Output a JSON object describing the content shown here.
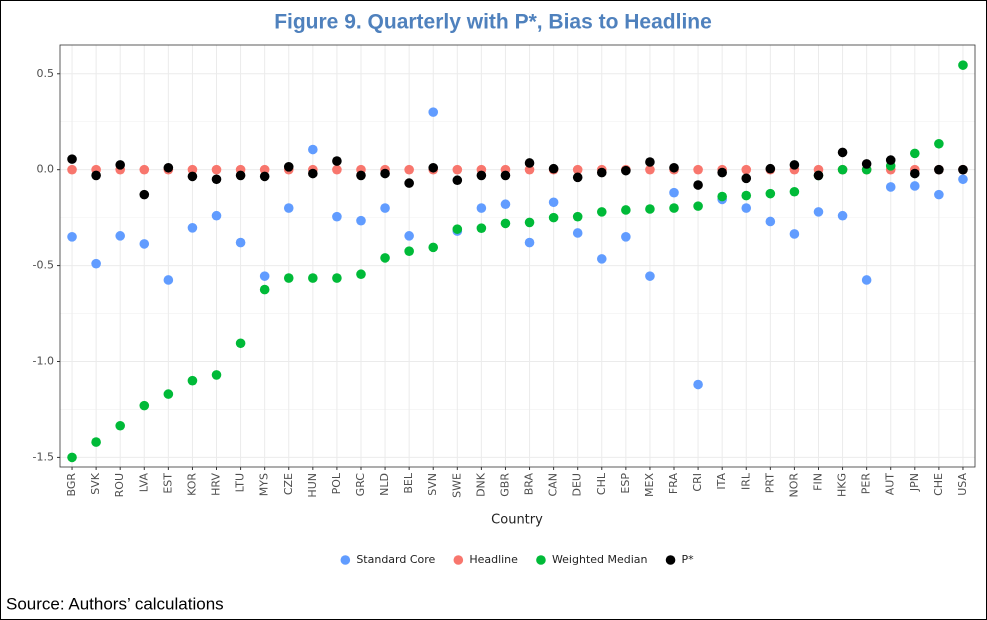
{
  "chart_data": {
    "type": "scatter",
    "title": "Figure 9. Quarterly with P*, Bias to Headline",
    "x_label": "Country",
    "categories": [
      "BGR",
      "SVK",
      "ROU",
      "LVA",
      "EST",
      "KOR",
      "HRV",
      "LTU",
      "MYS",
      "CZE",
      "HUN",
      "POL",
      "GRC",
      "NLD",
      "BEL",
      "SVN",
      "SWE",
      "DNK",
      "GBR",
      "BRA",
      "CAN",
      "DEU",
      "CHL",
      "ESP",
      "MEX",
      "FRA",
      "CRI",
      "ITA",
      "IRL",
      "PRT",
      "NOR",
      "FIN",
      "HKG",
      "PER",
      "AUT",
      "JPN",
      "CHE",
      "USA"
    ],
    "series": [
      {
        "name": "Standard Core",
        "color": "#619cff",
        "values": [
          -0.35,
          -0.49,
          -0.345,
          -0.387,
          -0.575,
          -0.303,
          -0.24,
          -0.38,
          -0.555,
          -0.2,
          0.105,
          -0.245,
          -0.266,
          -0.2,
          -0.345,
          0.3,
          -0.32,
          -0.2,
          -0.18,
          -0.38,
          -0.17,
          -0.33,
          -0.465,
          -0.35,
          -0.555,
          -0.12,
          -1.12,
          -0.155,
          -0.2,
          -0.27,
          -0.335,
          -0.22,
          -0.24,
          -0.575,
          -0.09,
          -0.085,
          -0.13,
          -0.05
        ]
      },
      {
        "name": "Headline",
        "color": "#f8766d",
        "values": [
          0,
          0,
          0,
          0,
          0,
          0,
          0,
          0,
          0,
          0,
          0,
          0,
          0,
          0,
          0,
          0,
          0,
          0,
          0,
          0,
          0,
          0,
          0,
          0,
          0,
          0,
          0,
          0,
          0,
          0,
          0,
          0,
          0,
          0,
          0,
          0,
          0,
          0
        ]
      },
      {
        "name": "Weighted Median",
        "color": "#00ba38",
        "values": [
          -1.5,
          -1.42,
          -1.335,
          -1.23,
          -1.17,
          -1.1,
          -1.07,
          -0.905,
          -0.625,
          -0.565,
          -0.565,
          -0.565,
          -0.545,
          -0.46,
          -0.425,
          -0.405,
          -0.31,
          -0.305,
          -0.28,
          -0.275,
          -0.25,
          -0.245,
          -0.22,
          -0.21,
          -0.205,
          -0.2,
          -0.19,
          -0.14,
          -0.135,
          -0.125,
          -0.115,
          -0.03,
          0,
          0,
          0.02,
          0.085,
          0.135,
          0.545
        ]
      },
      {
        "name": "P*",
        "color": "#000000",
        "values": [
          0.055,
          -0.03,
          0.025,
          -0.13,
          0.01,
          -0.035,
          -0.05,
          -0.03,
          -0.035,
          0.015,
          -0.02,
          0.045,
          -0.03,
          -0.02,
          -0.07,
          0.01,
          -0.055,
          -0.03,
          -0.03,
          0.035,
          0.005,
          -0.04,
          -0.015,
          -0.005,
          0.04,
          0.01,
          -0.08,
          -0.015,
          -0.045,
          0.005,
          0.025,
          -0.03,
          0.09,
          0.03,
          0.05,
          -0.02,
          0,
          0
        ]
      }
    ],
    "ylim": [
      -1.55,
      0.65
    ],
    "yticks": [
      -1.5,
      {
        "value": -1,
        "label": "-1.0"
      },
      -0.5,
      {
        "value": 0,
        "label": "0.0"
      },
      0.5
    ],
    "grid": true
  },
  "source": "Source: Authors’ calculations"
}
